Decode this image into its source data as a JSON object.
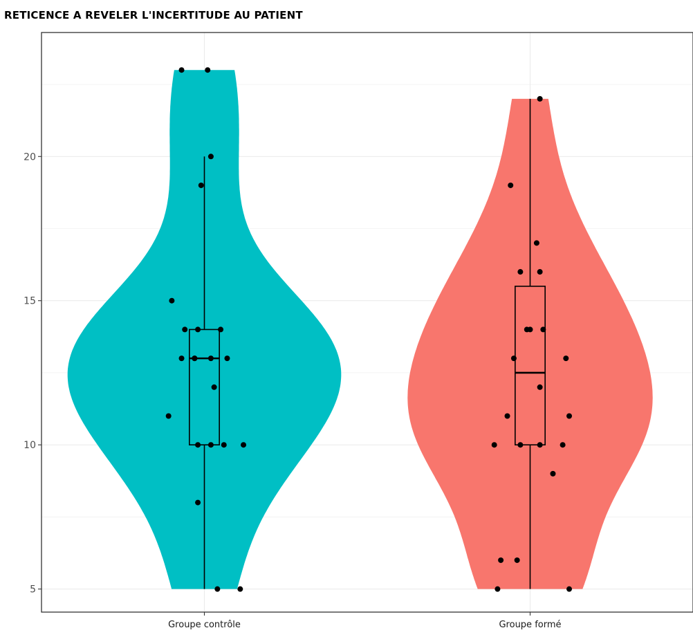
{
  "chart_data": {
    "type": "violin",
    "title": "RETICENCE A REVELER L'INCERTITUDE AU PATIENT",
    "xlabel": "",
    "ylabel": "",
    "ylim": [
      4.2,
      24.3
    ],
    "y_ticks": [
      5,
      10,
      15,
      20
    ],
    "categories": [
      "Groupe contrôle",
      "Groupe formé"
    ],
    "grid": true,
    "legend": "none",
    "groups": [
      {
        "category": "Groupe contrôle",
        "color": "#00BFC4",
        "violin_range": [
          5,
          23
        ],
        "box": {
          "min": 5,
          "q1": 10,
          "median": 13,
          "q3": 14,
          "max": 20
        },
        "points": [
          {
            "x_jitter": -0.07,
            "y": 23
          },
          {
            "x_jitter": 0.01,
            "y": 23
          },
          {
            "x_jitter": 0.02,
            "y": 20
          },
          {
            "x_jitter": -0.01,
            "y": 19
          },
          {
            "x_jitter": -0.1,
            "y": 15
          },
          {
            "x_jitter": -0.06,
            "y": 14
          },
          {
            "x_jitter": -0.02,
            "y": 14
          },
          {
            "x_jitter": 0.05,
            "y": 14
          },
          {
            "x_jitter": -0.07,
            "y": 13
          },
          {
            "x_jitter": -0.03,
            "y": 13
          },
          {
            "x_jitter": -0.03,
            "y": 13
          },
          {
            "x_jitter": 0.02,
            "y": 13
          },
          {
            "x_jitter": 0.07,
            "y": 13
          },
          {
            "x_jitter": 0.03,
            "y": 12
          },
          {
            "x_jitter": -0.11,
            "y": 11
          },
          {
            "x_jitter": -0.02,
            "y": 10
          },
          {
            "x_jitter": 0.02,
            "y": 10
          },
          {
            "x_jitter": 0.06,
            "y": 10
          },
          {
            "x_jitter": 0.12,
            "y": 10
          },
          {
            "x_jitter": -0.02,
            "y": 8
          },
          {
            "x_jitter": 0.04,
            "y": 5
          },
          {
            "x_jitter": 0.11,
            "y": 5
          }
        ]
      },
      {
        "category": "Groupe formé",
        "color": "#F8766D",
        "violin_range": [
          5,
          22
        ],
        "box": {
          "min": 5,
          "q1": 10,
          "median": 12.5,
          "q3": 15.5,
          "max": 22
        },
        "points": [
          {
            "x_jitter": 0.03,
            "y": 22
          },
          {
            "x_jitter": -0.06,
            "y": 19
          },
          {
            "x_jitter": 0.02,
            "y": 17
          },
          {
            "x_jitter": -0.03,
            "y": 16
          },
          {
            "x_jitter": 0.03,
            "y": 16
          },
          {
            "x_jitter": -0.01,
            "y": 14
          },
          {
            "x_jitter": 0.0,
            "y": 14
          },
          {
            "x_jitter": 0.04,
            "y": 14
          },
          {
            "x_jitter": -0.05,
            "y": 13
          },
          {
            "x_jitter": 0.11,
            "y": 13
          },
          {
            "x_jitter": 0.03,
            "y": 12
          },
          {
            "x_jitter": -0.07,
            "y": 11
          },
          {
            "x_jitter": 0.12,
            "y": 11
          },
          {
            "x_jitter": -0.11,
            "y": 10
          },
          {
            "x_jitter": -0.03,
            "y": 10
          },
          {
            "x_jitter": 0.03,
            "y": 10
          },
          {
            "x_jitter": 0.1,
            "y": 10
          },
          {
            "x_jitter": 0.07,
            "y": 9
          },
          {
            "x_jitter": -0.09,
            "y": 6
          },
          {
            "x_jitter": -0.04,
            "y": 6
          },
          {
            "x_jitter": -0.1,
            "y": 5
          },
          {
            "x_jitter": 0.12,
            "y": 5
          }
        ]
      }
    ]
  }
}
